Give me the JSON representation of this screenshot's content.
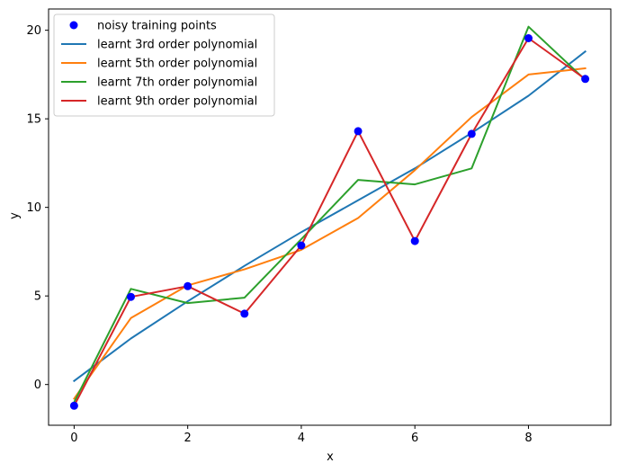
{
  "chart_data": {
    "type": "line",
    "title": "",
    "xlabel": "x",
    "ylabel": "y",
    "xlim": [
      -0.45,
      9.45
    ],
    "ylim": [
      -2.3,
      21.2
    ],
    "xticks": [
      0,
      2,
      4,
      6,
      8
    ],
    "yticks": [
      0,
      5,
      10,
      15,
      20
    ],
    "grid": false,
    "legend_position": "top-left",
    "x": [
      0,
      1,
      2,
      3,
      4,
      5,
      6,
      7,
      8,
      9
    ],
    "series": [
      {
        "name": "noisy training points",
        "kind": "scatter",
        "color": "#0000ff",
        "values": [
          -1.2,
          4.95,
          5.55,
          4.0,
          7.85,
          14.3,
          8.1,
          14.15,
          19.55,
          17.25
        ]
      },
      {
        "name": "learnt 3rd order polynomial",
        "kind": "line",
        "color": "#1f77b4",
        "values": [
          0.2,
          2.6,
          4.7,
          6.7,
          8.6,
          10.4,
          12.2,
          14.2,
          16.3,
          18.8
        ]
      },
      {
        "name": "learnt 5th order polynomial",
        "kind": "line",
        "color": "#ff7f0e",
        "values": [
          -0.8,
          3.75,
          5.6,
          6.5,
          7.6,
          9.4,
          12.1,
          15.1,
          17.5,
          17.85
        ]
      },
      {
        "name": "learnt 7th order polynomial",
        "kind": "line",
        "color": "#2ca02c",
        "values": [
          -1.0,
          5.4,
          4.6,
          4.9,
          8.2,
          11.55,
          11.3,
          12.2,
          20.2,
          17.2
        ]
      },
      {
        "name": "learnt 9th order polynomial",
        "kind": "line",
        "color": "#d62728",
        "values": [
          -1.2,
          4.95,
          5.55,
          4.0,
          7.85,
          14.3,
          8.1,
          14.15,
          19.55,
          17.25
        ]
      }
    ]
  }
}
